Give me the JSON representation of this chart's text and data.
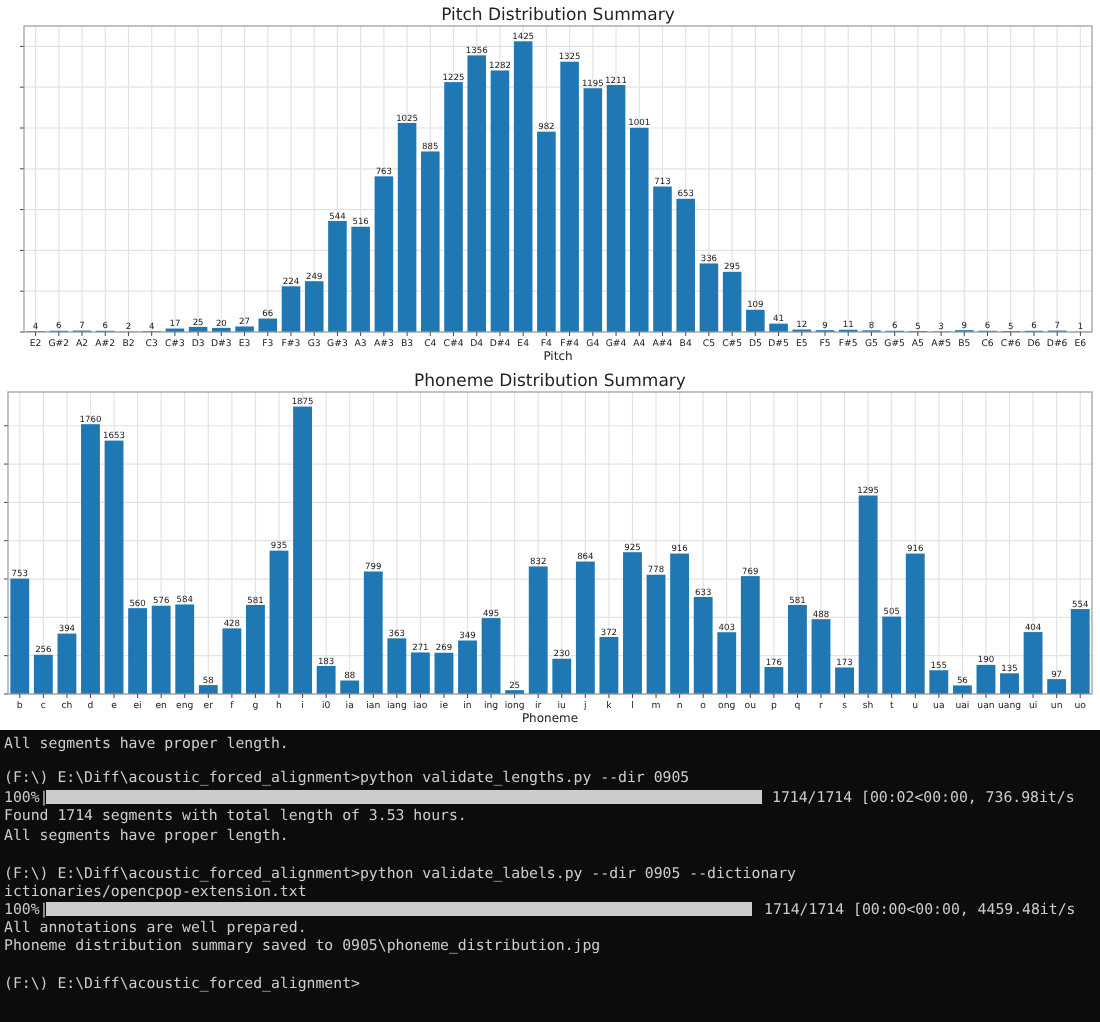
{
  "chart_data": [
    {
      "type": "bar",
      "title": "Pitch Distribution Summary",
      "xlabel": "Pitch",
      "categories": [
        "E2",
        "G#2",
        "A2",
        "A#2",
        "B2",
        "C3",
        "C#3",
        "D3",
        "D#3",
        "E3",
        "F3",
        "F#3",
        "G3",
        "G#3",
        "A3",
        "A#3",
        "B3",
        "C4",
        "C#4",
        "D4",
        "D#4",
        "E4",
        "F4",
        "F#4",
        "G4",
        "G#4",
        "A4",
        "A#4",
        "B4",
        "C5",
        "C#5",
        "D5",
        "D#5",
        "E5",
        "F5",
        "F#5",
        "G5",
        "G#5",
        "A5",
        "A#5",
        "B5",
        "C6",
        "C#6",
        "D6",
        "D#6",
        "E6"
      ],
      "values": [
        4,
        6,
        7,
        6,
        2,
        4,
        17,
        25,
        20,
        27,
        66,
        224,
        249,
        544,
        516,
        763,
        1025,
        885,
        1225,
        1356,
        1282,
        1425,
        982,
        1325,
        1195,
        1211,
        1001,
        713,
        653,
        336,
        295,
        109,
        41,
        12,
        9,
        11,
        8,
        6,
        5,
        3,
        9,
        6,
        5,
        6,
        7,
        1
      ],
      "color": "#1f77b4",
      "ylim": [
        0,
        1500
      ],
      "yticks": [
        {
          "value": 0,
          "label": null
        },
        {
          "value": 200,
          "label": null
        },
        {
          "value": 400,
          "label": null
        },
        {
          "value": 600,
          "label": null
        },
        {
          "value": 800,
          "label": null
        },
        {
          "value": 1000,
          "label": null
        },
        {
          "value": 1200,
          "label": null
        },
        {
          "value": 1400,
          "label": null
        }
      ],
      "tick_labels": "x",
      "grid": true,
      "data_labels": true
    },
    {
      "type": "bar",
      "title": "Phoneme Distribution Summary",
      "xlabel": "Phoneme",
      "categories": [
        "b",
        "c",
        "ch",
        "d",
        "e",
        "ei",
        "en",
        "eng",
        "er",
        "f",
        "g",
        "h",
        "i",
        "i0",
        "ia",
        "ian",
        "iang",
        "iao",
        "ie",
        "in",
        "ing",
        "iong",
        "ir",
        "iu",
        "j",
        "k",
        "l",
        "m",
        "n",
        "o",
        "ong",
        "ou",
        "p",
        "q",
        "r",
        "s",
        "sh",
        "t",
        "u",
        "ua",
        "uai",
        "uan",
        "uang",
        "ui",
        "un",
        "uo"
      ],
      "values": [
        753,
        256,
        394,
        1760,
        1653,
        560,
        576,
        584,
        58,
        428,
        581,
        935,
        1875,
        183,
        88,
        799,
        363,
        271,
        269,
        349,
        495,
        25,
        832,
        230,
        864,
        372,
        925,
        778,
        916,
        633,
        403,
        769,
        176,
        581,
        488,
        173,
        1295,
        505,
        916,
        155,
        56,
        190,
        135,
        404,
        97,
        554
      ],
      "color": "#1f77b4",
      "ylim": [
        0,
        1970
      ],
      "yticks": [
        {
          "value": 0,
          "label": null
        },
        {
          "value": 250,
          "label": null
        },
        {
          "value": 500,
          "label": null
        },
        {
          "value": 750,
          "label": null
        },
        {
          "value": 1000,
          "label": null
        },
        {
          "value": 1250,
          "label": null
        },
        {
          "value": 1500,
          "label": null
        },
        {
          "value": 1750,
          "label": null
        }
      ],
      "tick_labels": "x",
      "grid": true,
      "data_labels": true
    },
    {
      "type": "other",
      "annotations": [
        "All segments have proper length.",
        "(F:\\) E:\\Diff\\acoustic_forced_alignment>python validate_lengths.py --dir 0905",
        "100%|",
        "1714/1714 [00:02<00:00, 736.98it/s",
        "Found 1714 segments with total length of 3.53 hours.",
        "All segments have proper length.",
        "(F:\\) E:\\Diff\\acoustic_forced_alignment>python validate_labels.py --dir 0905 --dictionary",
        "ictionaries/opencpop-extension.txt",
        "100%|",
        "1714/1714 [00:00<00:00, 4459.48it/s",
        "All annotations are well prepared.",
        "Phoneme distribution summary saved to 0905\\phoneme_distribution.jpg",
        "(F:\\) E:\\Diff\\acoustic_forced_alignment>"
      ]
    }
  ]
}
